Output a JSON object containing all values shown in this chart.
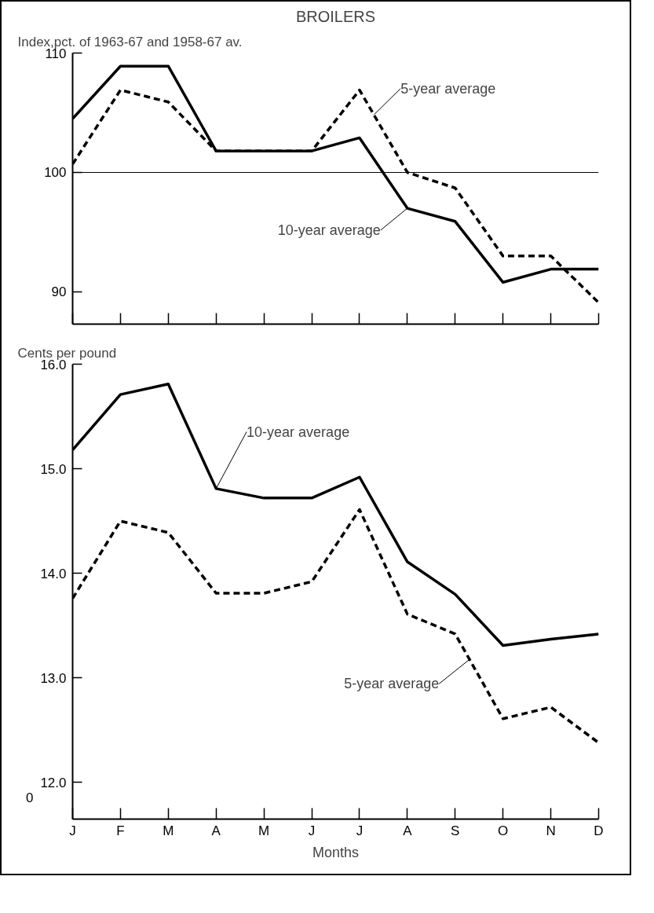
{
  "chart_data": [
    {
      "type": "line",
      "title": "BROILERS",
      "ylabel": "Index,pct. of 1963-67 and 1958-67 av.",
      "categories": [
        null,
        null,
        null,
        null,
        null,
        null,
        null,
        null,
        null,
        null,
        null,
        null
      ],
      "ylim": [
        87.3,
        110
      ],
      "yticks": [
        90,
        100,
        110
      ],
      "tick_labels": "y",
      "grid": false,
      "ref_lines": [
        {
          "axis": "y",
          "value": 100,
          "color": "#000000"
        }
      ],
      "series": [
        {
          "name": "5-year average",
          "color": "#000000",
          "line_style": "dashed",
          "values": [
            100.7,
            106.9,
            105.9,
            101.8,
            101.8,
            101.8,
            106.9,
            100.0,
            98.7,
            93.0,
            93.0,
            89.1
          ]
        },
        {
          "name": "10-year average",
          "color": "#000000",
          "line_style": "solid",
          "values": [
            104.5,
            108.9,
            108.9,
            101.8,
            101.8,
            101.8,
            102.9,
            97.0,
            95.9,
            90.8,
            91.9,
            91.9
          ]
        }
      ]
    },
    {
      "type": "line",
      "ylabel": "Cents per pound",
      "xlabel": "Months",
      "categories": [
        "J",
        "F",
        "M",
        "A",
        "M",
        "J",
        "J",
        "A",
        "S",
        "O",
        "N",
        "D"
      ],
      "ylim": [
        11.65,
        16.0
      ],
      "yticks": [
        {
          "value": 12.0,
          "label": "12.0"
        },
        {
          "value": 13.0,
          "label": "13.0"
        },
        {
          "value": 14.0,
          "label": "14.0"
        },
        {
          "value": 15.0,
          "label": "15.0"
        },
        {
          "value": 16.0,
          "label": "16.0"
        }
      ],
      "annotations": [
        "0"
      ],
      "grid": false,
      "series": [
        {
          "name": "10-year average",
          "color": "#000000",
          "line_style": "solid",
          "values": [
            15.18,
            15.71,
            15.81,
            14.81,
            14.72,
            14.72,
            14.92,
            14.11,
            13.8,
            13.31,
            13.37,
            13.42
          ]
        },
        {
          "name": "5-year average",
          "color": "#000000",
          "line_style": "dashed",
          "values": [
            13.76,
            14.5,
            14.39,
            13.81,
            13.81,
            13.92,
            14.61,
            13.61,
            13.42,
            12.61,
            12.72,
            12.38
          ]
        }
      ]
    }
  ]
}
